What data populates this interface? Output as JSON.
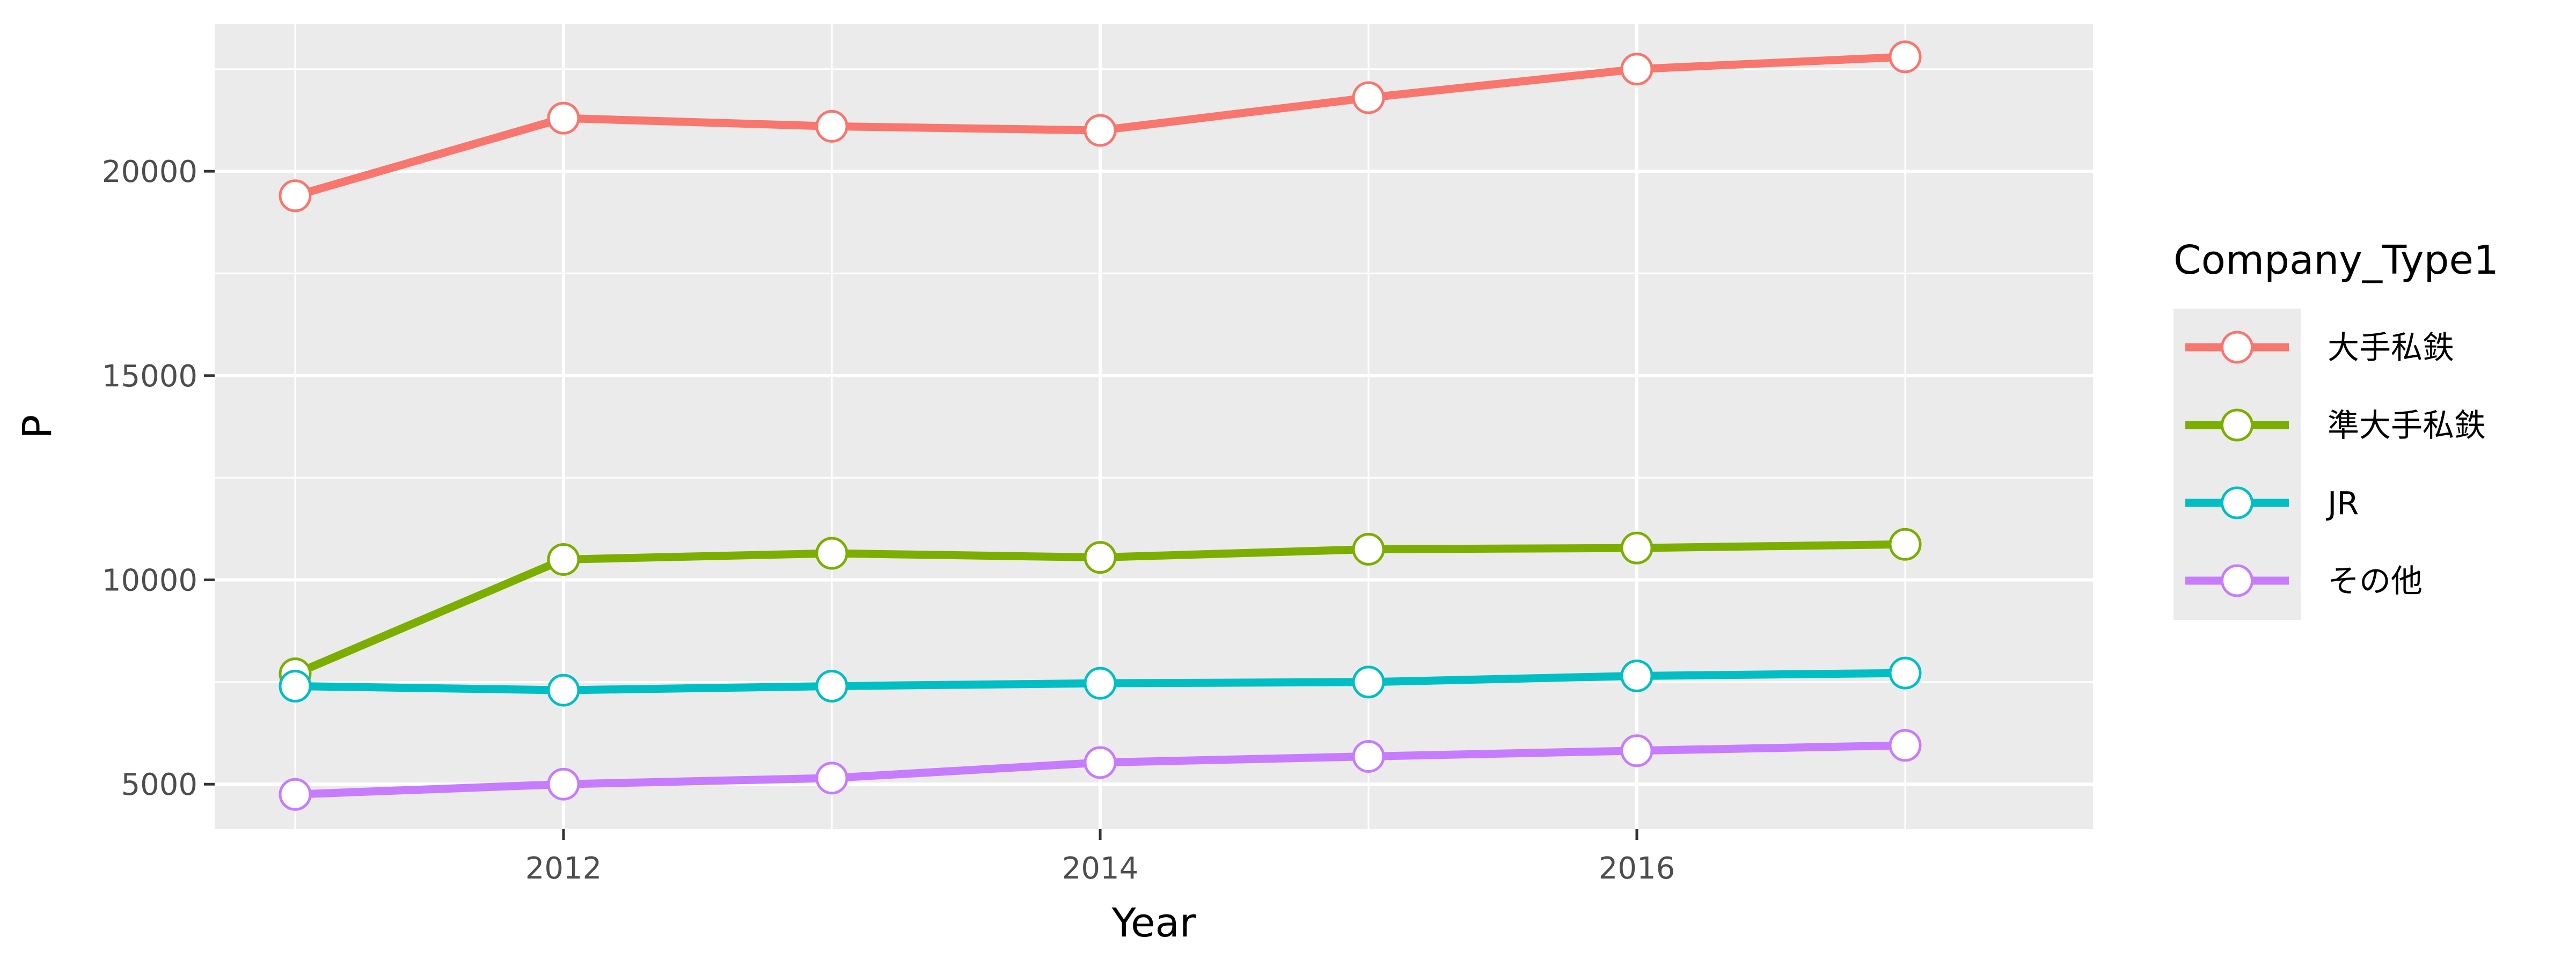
{
  "chart_data": {
    "type": "line",
    "xlabel": "Year",
    "ylabel": "P",
    "x": [
      2011,
      2012,
      2013,
      2014,
      2015,
      2016,
      2017
    ],
    "xlim": [
      2010.7,
      2017.7
    ],
    "ylim": [
      3900,
      23600
    ],
    "x_ticks": [
      2012,
      2014,
      2016
    ],
    "x_tick_labels": [
      "2012",
      "2014",
      "2016"
    ],
    "y_ticks": [
      5000,
      10000,
      15000,
      20000
    ],
    "y_tick_labels": [
      "5000",
      "10000",
      "15000",
      "20000"
    ],
    "grid": true,
    "legend_title": "Company_Type1",
    "legend_position": "right",
    "series": [
      {
        "name": "大手私鉄",
        "color": "#F8766D",
        "values": [
          19400,
          21300,
          21100,
          21000,
          21800,
          22500,
          22800
        ]
      },
      {
        "name": "準大手私鉄",
        "color": "#7CAE00",
        "values": [
          7700,
          10500,
          10650,
          10550,
          10750,
          10780,
          10870
        ]
      },
      {
        "name": "JR",
        "color": "#00BFC4",
        "values": [
          7400,
          7300,
          7400,
          7470,
          7500,
          7650,
          7720
        ]
      },
      {
        "name": "その他",
        "color": "#C77CFF",
        "values": [
          4750,
          5000,
          5150,
          5530,
          5680,
          5820,
          5950
        ]
      }
    ]
  }
}
